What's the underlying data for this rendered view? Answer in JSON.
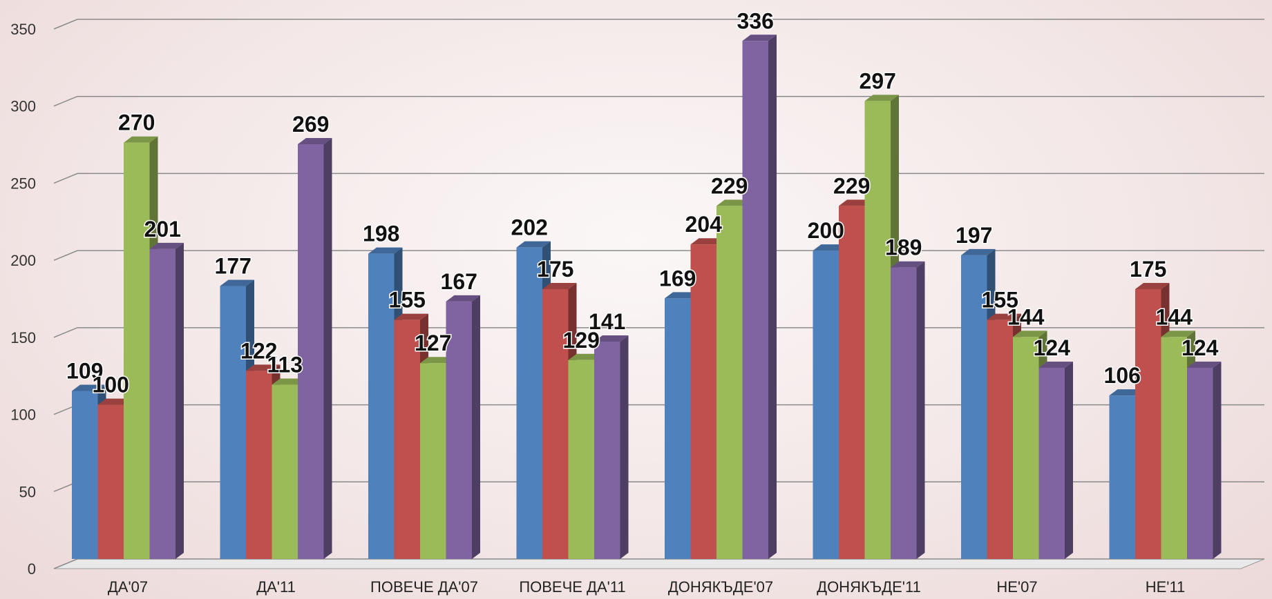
{
  "chart_data": {
    "type": "bar3d",
    "categories": [
      "ДА'07",
      "ДА'11",
      "ПОВЕЧЕ ДА'07",
      "ПОВЕЧЕ ДА'11",
      "ДОНЯКЪДЕ'07",
      "ДОНЯКЪДЕ'11",
      "НЕ'07",
      "НЕ'11"
    ],
    "series": [
      {
        "color": "#4f81bd",
        "values": [
          109,
          177,
          198,
          202,
          169,
          200,
          197,
          106
        ]
      },
      {
        "color": "#c0504d",
        "values": [
          100,
          122,
          155,
          175,
          204,
          229,
          155,
          175
        ]
      },
      {
        "color": "#9bbb59",
        "values": [
          270,
          113,
          127,
          129,
          229,
          297,
          144,
          144
        ]
      },
      {
        "color": "#8064a2",
        "values": [
          201,
          269,
          167,
          141,
          336,
          189,
          124,
          124
        ]
      }
    ],
    "ylim": [
      0,
      350
    ],
    "yticks": [
      0,
      50,
      100,
      150,
      200,
      250,
      300,
      350
    ],
    "grid": true
  }
}
